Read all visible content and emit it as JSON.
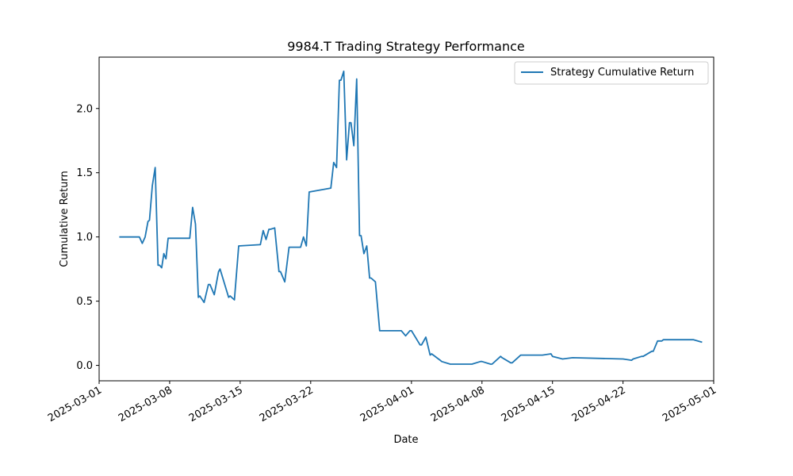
{
  "chart_data": {
    "type": "line",
    "title": "9984.T Trading Strategy Performance",
    "xlabel": "Date",
    "ylabel": "Cumulative Return",
    "xlim": [
      "2025-03-01",
      "2025-05-01"
    ],
    "ylim": [
      -0.12,
      2.4
    ],
    "x_ticks": [
      "2025-03-01",
      "2025-03-08",
      "2025-03-15",
      "2025-03-22",
      "2025-04-01",
      "2025-04-08",
      "2025-04-15",
      "2025-04-22",
      "2025-05-01"
    ],
    "y_ticks": [
      "0.0",
      "0.5",
      "1.0",
      "1.5",
      "2.0"
    ],
    "grid": false,
    "legend": {
      "position": "upper right"
    },
    "series": [
      {
        "name": "Strategy Cumulative Return",
        "color": "#1f77b4",
        "points": [
          [
            "2025-03-03",
            1.0
          ],
          [
            "2025-03-05",
            1.0
          ],
          [
            "2025-03-05",
            0.95
          ],
          [
            "2025-03-05",
            1.0
          ],
          [
            "2025-03-05",
            1.12
          ],
          [
            "2025-03-06",
            1.13
          ],
          [
            "2025-03-06",
            1.4
          ],
          [
            "2025-03-06",
            1.54
          ],
          [
            "2025-03-06",
            0.78
          ],
          [
            "2025-03-07",
            0.78
          ],
          [
            "2025-03-07",
            0.76
          ],
          [
            "2025-03-07",
            0.87
          ],
          [
            "2025-03-07",
            0.83
          ],
          [
            "2025-03-07",
            0.99
          ],
          [
            "2025-03-10",
            0.99
          ],
          [
            "2025-03-10",
            1.23
          ],
          [
            "2025-03-10",
            1.1
          ],
          [
            "2025-03-10",
            0.53
          ],
          [
            "2025-03-11",
            0.54
          ],
          [
            "2025-03-11",
            0.49
          ],
          [
            "2025-03-11",
            0.63
          ],
          [
            "2025-03-12",
            0.63
          ],
          [
            "2025-03-12",
            0.55
          ],
          [
            "2025-03-12",
            0.73
          ],
          [
            "2025-03-13",
            0.75
          ],
          [
            "2025-03-13",
            0.53
          ],
          [
            "2025-03-14",
            0.54
          ],
          [
            "2025-03-14",
            0.51
          ],
          [
            "2025-03-14",
            0.93
          ],
          [
            "2025-03-17",
            0.94
          ],
          [
            "2025-03-17",
            1.05
          ],
          [
            "2025-03-17",
            0.98
          ],
          [
            "2025-03-17",
            1.06
          ],
          [
            "2025-03-18",
            1.06
          ],
          [
            "2025-03-18",
            1.07
          ],
          [
            "2025-03-18",
            0.73
          ],
          [
            "2025-03-19",
            0.73
          ],
          [
            "2025-03-19",
            0.65
          ],
          [
            "2025-03-19",
            0.92
          ],
          [
            "2025-03-21",
            0.92
          ],
          [
            "2025-03-21",
            1.0
          ],
          [
            "2025-03-21",
            0.93
          ],
          [
            "2025-03-21",
            1.35
          ],
          [
            "2025-03-24",
            1.38
          ],
          [
            "2025-03-24",
            1.58
          ],
          [
            "2025-03-24",
            1.54
          ],
          [
            "2025-03-24",
            2.22
          ],
          [
            "2025-03-25",
            2.22
          ],
          [
            "2025-03-25",
            2.29
          ],
          [
            "2025-03-25",
            1.6
          ],
          [
            "2025-03-25",
            1.89
          ],
          [
            "2025-03-26",
            1.89
          ],
          [
            "2025-03-26",
            1.71
          ],
          [
            "2025-03-26",
            2.23
          ],
          [
            "2025-03-26",
            1.01
          ],
          [
            "2025-03-27",
            1.01
          ],
          [
            "2025-03-27",
            0.87
          ],
          [
            "2025-03-27",
            0.93
          ],
          [
            "2025-03-27",
            0.68
          ],
          [
            "2025-03-28",
            0.68
          ],
          [
            "2025-03-28",
            0.65
          ],
          [
            "2025-03-28",
            0.27
          ],
          [
            "2025-03-31",
            0.27
          ],
          [
            "2025-03-31",
            0.23
          ],
          [
            "2025-03-31",
            0.27
          ],
          [
            "2025-04-01",
            0.27
          ],
          [
            "2025-04-01",
            0.16
          ],
          [
            "2025-04-02",
            0.16
          ],
          [
            "2025-04-02",
            0.22
          ],
          [
            "2025-04-02",
            0.08
          ],
          [
            "2025-04-03",
            0.09
          ],
          [
            "2025-04-03",
            0.04
          ],
          [
            "2025-04-04",
            0.03
          ],
          [
            "2025-04-04",
            0.01
          ],
          [
            "2025-04-07",
            0.01
          ],
          [
            "2025-04-07",
            0.03
          ],
          [
            "2025-04-08",
            0.03
          ],
          [
            "2025-04-08",
            0.01
          ],
          [
            "2025-04-09",
            0.01
          ],
          [
            "2025-04-09",
            0.07
          ],
          [
            "2025-04-10",
            0.06
          ],
          [
            "2025-04-10",
            0.02
          ],
          [
            "2025-04-11",
            0.02
          ],
          [
            "2025-04-11",
            0.08
          ],
          [
            "2025-04-14",
            0.08
          ],
          [
            "2025-04-14",
            0.09
          ],
          [
            "2025-04-15",
            0.07
          ],
          [
            "2025-04-16",
            0.05
          ],
          [
            "2025-04-17",
            0.06
          ],
          [
            "2025-04-22",
            0.05
          ],
          [
            "2025-04-22",
            0.04
          ],
          [
            "2025-04-23",
            0.05
          ],
          [
            "2025-04-23",
            0.07
          ],
          [
            "2025-04-24",
            0.07
          ],
          [
            "2025-04-24",
            0.11
          ],
          [
            "2025-04-25",
            0.11
          ],
          [
            "2025-04-25",
            0.19
          ],
          [
            "2025-04-25",
            0.19
          ],
          [
            "2025-04-26",
            0.2
          ],
          [
            "2025-04-28",
            0.2
          ],
          [
            "2025-04-29",
            0.2
          ],
          [
            "2025-04-29",
            0.18
          ]
        ]
      }
    ]
  }
}
